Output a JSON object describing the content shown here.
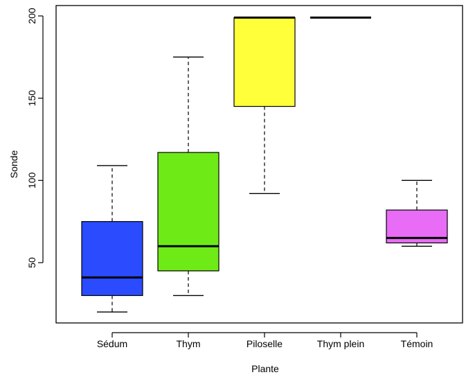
{
  "chart_data": {
    "type": "boxplot",
    "title": "",
    "xlabel": "Plante",
    "ylabel": "Sonde",
    "ylim": [
      20,
      200
    ],
    "yticks": [
      50,
      100,
      150,
      200
    ],
    "grid": false,
    "legend": "none",
    "categories": [
      "Sédum",
      "Thym",
      "Piloselle",
      "Thym plein",
      "Témoin"
    ],
    "boxes": [
      {
        "category": "Sédum",
        "whisker_low": 20,
        "q1": 30,
        "median": 41,
        "q3": 75,
        "whisker_high": 109,
        "color": "#2B4BFF"
      },
      {
        "category": "Thym",
        "whisker_low": 30,
        "q1": 45,
        "median": 60,
        "q3": 117,
        "whisker_high": 175,
        "color": "#6EEB17"
      },
      {
        "category": "Piloselle",
        "whisker_low": 92,
        "q1": 145,
        "median": 199,
        "q3": 199,
        "whisker_high": 199,
        "color": "#FFFF3A"
      },
      {
        "category": "Thym plein",
        "whisker_low": 199,
        "q1": 199,
        "median": 199,
        "q3": 199,
        "whisker_high": 199,
        "color": "#FFFFFF"
      },
      {
        "category": "Témoin",
        "whisker_low": 60,
        "q1": 62,
        "median": 65,
        "q3": 82,
        "whisker_high": 100,
        "color": "#E86CF5"
      }
    ]
  }
}
